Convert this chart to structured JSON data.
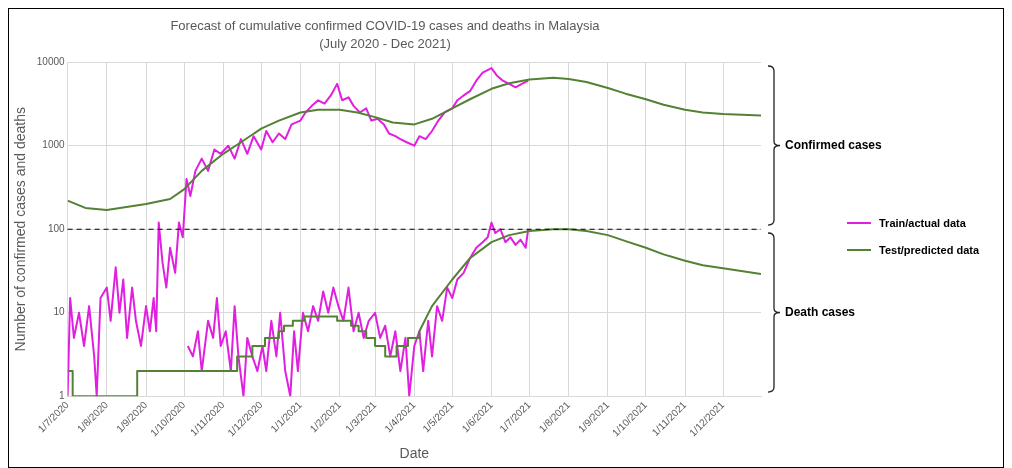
{
  "chart_data": {
    "type": "line",
    "title": "Forecast of cumulative confirmed COVID-19 cases and deaths in Malaysia",
    "subtitle": "(July 2020 - Dec 2021)",
    "xlabel": "Date",
    "ylabel": "Number of confirmed cases and deaths",
    "xlim": [
      "2020-07-01",
      "2021-12-31"
    ],
    "xticks": [
      {
        "value": "2020-07-01",
        "label": "1/7/2020"
      },
      {
        "value": "2020-08-01",
        "label": "1/8/2020"
      },
      {
        "value": "2020-09-01",
        "label": "1/9/2020"
      },
      {
        "value": "2020-10-01",
        "label": "1/10/2020"
      },
      {
        "value": "2020-11-01",
        "label": "1/11/2020"
      },
      {
        "value": "2020-12-01",
        "label": "1/12/2020"
      },
      {
        "value": "2021-01-01",
        "label": "1/1/2021"
      },
      {
        "value": "2021-02-01",
        "label": "1/2/2021"
      },
      {
        "value": "2021-03-01",
        "label": "1/3/2021"
      },
      {
        "value": "2021-04-01",
        "label": "1/4/2021"
      },
      {
        "value": "2021-05-01",
        "label": "1/5/2021"
      },
      {
        "value": "2021-06-01",
        "label": "1/6/2021"
      },
      {
        "value": "2021-07-01",
        "label": "1/7/2021"
      },
      {
        "value": "2021-08-01",
        "label": "1/8/2021"
      },
      {
        "value": "2021-09-01",
        "label": "1/9/2021"
      },
      {
        "value": "2021-10-01",
        "label": "1/10/2021"
      },
      {
        "value": "2021-11-01",
        "label": "1/11/2021"
      },
      {
        "value": "2021-12-01",
        "label": "1/12/2021"
      }
    ],
    "ylim": [
      1,
      10000
    ],
    "yticks": [
      1,
      10,
      100,
      1000,
      10000
    ],
    "log": true,
    "grid": true,
    "legend": "right",
    "ref_lines": [
      {
        "axis": "y",
        "value": 100,
        "color": "#000000",
        "line_style": "dashed"
      }
    ],
    "annotations": [
      "Confirmed cases",
      "Death cases"
    ],
    "series": [
      {
        "name": "Train/actual data",
        "type": "line",
        "color": "#e11fe0",
        "x": [
          "2020-07-01",
          "2020-07-03",
          "2020-07-06",
          "2020-07-10",
          "2020-07-14",
          "2020-07-18",
          "2020-07-22",
          "2020-07-24",
          "2020-07-27",
          "2020-08-01",
          "2020-08-04",
          "2020-08-08",
          "2020-08-11",
          "2020-08-14",
          "2020-08-17",
          "2020-08-21",
          "2020-08-24",
          "2020-08-28",
          "2020-09-01",
          "2020-09-04",
          "2020-09-07",
          "2020-09-09",
          "2020-09-11",
          "2020-09-14",
          "2020-09-17",
          "2020-09-20",
          "2020-09-24",
          "2020-09-27",
          "2020-09-30",
          "2020-10-03",
          "2020-10-06",
          "2020-10-10",
          "2020-10-15",
          "2020-10-20",
          "2020-10-25",
          "2020-10-30",
          "2020-11-05",
          "2020-11-10",
          "2020-11-15",
          "2020-11-20",
          "2020-11-25",
          "2020-12-01",
          "2020-12-05",
          "2020-12-10",
          "2020-12-15",
          "2020-12-20",
          "2020-12-25",
          "2021-01-01",
          "2021-01-05",
          "2021-01-10",
          "2021-01-15",
          "2021-01-20",
          "2021-01-25",
          "2021-01-30",
          "2021-02-03",
          "2021-02-08",
          "2021-02-12",
          "2021-02-17",
          "2021-02-22",
          "2021-02-26",
          "2021-03-03",
          "2021-03-08",
          "2021-03-12",
          "2021-03-17",
          "2021-03-21",
          "2021-03-26",
          "2021-04-01",
          "2021-04-05",
          "2021-04-10",
          "2021-04-15",
          "2021-04-20",
          "2021-04-25",
          "2021-05-01",
          "2021-05-05",
          "2021-05-10",
          "2021-05-15",
          "2021-05-20",
          "2021-05-25",
          "2021-06-01",
          "2021-06-05",
          "2021-06-10",
          "2021-06-15",
          "2021-06-20",
          "2021-06-25",
          "2021-06-30"
        ],
        "values": [
          1,
          15,
          5,
          10,
          4,
          12,
          3,
          1,
          15,
          20,
          8,
          35,
          10,
          25,
          5,
          20,
          8,
          4,
          12,
          6,
          15,
          6,
          120,
          40,
          20,
          60,
          30,
          120,
          80,
          400,
          250,
          500,
          700,
          500,
          900,
          800,
          1000,
          700,
          1200,
          800,
          1300,
          900,
          1500,
          1100,
          1400,
          1200,
          1800,
          2000,
          2500,
          3000,
          3500,
          3200,
          4000,
          5500,
          3500,
          3800,
          3000,
          2500,
          2800,
          2000,
          2100,
          1800,
          1400,
          1300,
          1200,
          1100,
          1000,
          1300,
          1200,
          1500,
          2000,
          2500,
          2800,
          3500,
          4000,
          4500,
          6000,
          7500,
          8500,
          7000,
          6000,
          5500,
          5000,
          5500,
          6000
        ]
      },
      {
        "type": "line",
        "color": "#e11fe0",
        "x": [
          "2020-10-04",
          "2020-10-08",
          "2020-10-12",
          "2020-10-15",
          "2020-10-20",
          "2020-10-24",
          "2020-10-27",
          "2020-10-30",
          "2020-11-03",
          "2020-11-07",
          "2020-11-10",
          "2020-11-13",
          "2020-11-17",
          "2020-11-20",
          "2020-11-24",
          "2020-11-28",
          "2020-12-02",
          "2020-12-05",
          "2020-12-09",
          "2020-12-13",
          "2020-12-16",
          "2020-12-20",
          "2020-12-24",
          "2020-12-27",
          "2020-12-30",
          "2021-01-03",
          "2021-01-07",
          "2021-01-11",
          "2021-01-15",
          "2021-01-19",
          "2021-01-23",
          "2021-01-27",
          "2021-01-31",
          "2021-02-04",
          "2021-02-08",
          "2021-02-12",
          "2021-02-16",
          "2021-02-20",
          "2021-02-24",
          "2021-03-01",
          "2021-03-05",
          "2021-03-09",
          "2021-03-13",
          "2021-03-17",
          "2021-03-21",
          "2021-03-25",
          "2021-03-28",
          "2021-04-01",
          "2021-04-05",
          "2021-04-08",
          "2021-04-12",
          "2021-04-15",
          "2021-04-19",
          "2021-04-23",
          "2021-04-27",
          "2021-05-01",
          "2021-05-05",
          "2021-05-10",
          "2021-05-15",
          "2021-05-20",
          "2021-05-25",
          "2021-05-29",
          "2021-06-01",
          "2021-06-04",
          "2021-06-08",
          "2021-06-12",
          "2021-06-16",
          "2021-06-20",
          "2021-06-24",
          "2021-06-28",
          "2021-06-30"
        ],
        "values": [
          4,
          3,
          6,
          2,
          8,
          5,
          15,
          4,
          6,
          2,
          12,
          3,
          1,
          5,
          3,
          2,
          4,
          2,
          8,
          3,
          10,
          2,
          1,
          6,
          2,
          10,
          6,
          12,
          8,
          18,
          10,
          20,
          12,
          8,
          20,
          6,
          10,
          5,
          8,
          10,
          5,
          7,
          3,
          6,
          2,
          5,
          1,
          4,
          6,
          2,
          8,
          3,
          12,
          8,
          20,
          15,
          25,
          30,
          45,
          60,
          70,
          80,
          120,
          90,
          100,
          70,
          80,
          65,
          75,
          60,
          100
        ]
      },
      {
        "name": "Test/predicted data",
        "type": "line",
        "color": "#548235",
        "x": [
          "2020-07-01",
          "2020-07-15",
          "2020-08-01",
          "2020-09-01",
          "2020-09-20",
          "2020-10-01",
          "2020-10-15",
          "2020-11-01",
          "2020-11-15",
          "2020-12-01",
          "2020-12-15",
          "2021-01-01",
          "2021-01-15",
          "2021-02-01",
          "2021-02-15",
          "2021-03-01",
          "2021-03-15",
          "2021-04-01",
          "2021-04-15",
          "2021-05-01",
          "2021-05-15",
          "2021-06-01",
          "2021-06-15",
          "2021-07-01",
          "2021-07-20",
          "2021-08-01",
          "2021-08-15",
          "2021-09-01",
          "2021-09-15",
          "2021-10-01",
          "2021-10-15",
          "2021-11-01",
          "2021-11-15",
          "2021-12-01",
          "2021-12-31"
        ],
        "values": [
          220,
          180,
          170,
          200,
          230,
          300,
          500,
          800,
          1100,
          1600,
          2000,
          2500,
          2700,
          2700,
          2500,
          2200,
          1900,
          1800,
          2100,
          2800,
          3600,
          4800,
          5600,
          6200,
          6500,
          6300,
          5800,
          4900,
          4200,
          3600,
          3100,
          2700,
          2500,
          2400,
          2300
        ]
      },
      {
        "type": "step",
        "color": "#548235",
        "x": [
          "2020-07-01",
          "2020-07-05",
          "2020-08-25",
          "2020-11-12",
          "2020-11-24",
          "2020-12-04",
          "2020-12-15",
          "2020-12-19",
          "2020-12-26",
          "2021-01-04",
          "2021-01-30",
          "2021-02-10",
          "2021-02-16",
          "2021-02-22",
          "2021-03-01",
          "2021-03-09",
          "2021-03-18",
          "2021-03-27",
          "2021-04-05"
        ],
        "values": [
          2,
          1,
          2,
          3,
          4,
          5,
          6,
          7,
          8,
          9,
          8,
          7,
          6,
          5,
          4,
          3,
          4,
          5,
          6
        ]
      },
      {
        "type": "line",
        "color": "#548235",
        "x": [
          "2021-04-05",
          "2021-04-15",
          "2021-05-01",
          "2021-05-15",
          "2021-06-01",
          "2021-06-15",
          "2021-07-01",
          "2021-07-20",
          "2021-08-01",
          "2021-08-15",
          "2021-09-01",
          "2021-09-15",
          "2021-10-01",
          "2021-10-15",
          "2021-11-01",
          "2021-11-15",
          "2021-12-01",
          "2021-12-31"
        ],
        "values": [
          6,
          12,
          25,
          45,
          70,
          85,
          95,
          100,
          100,
          95,
          85,
          72,
          60,
          50,
          42,
          37,
          34,
          29
        ]
      }
    ]
  }
}
